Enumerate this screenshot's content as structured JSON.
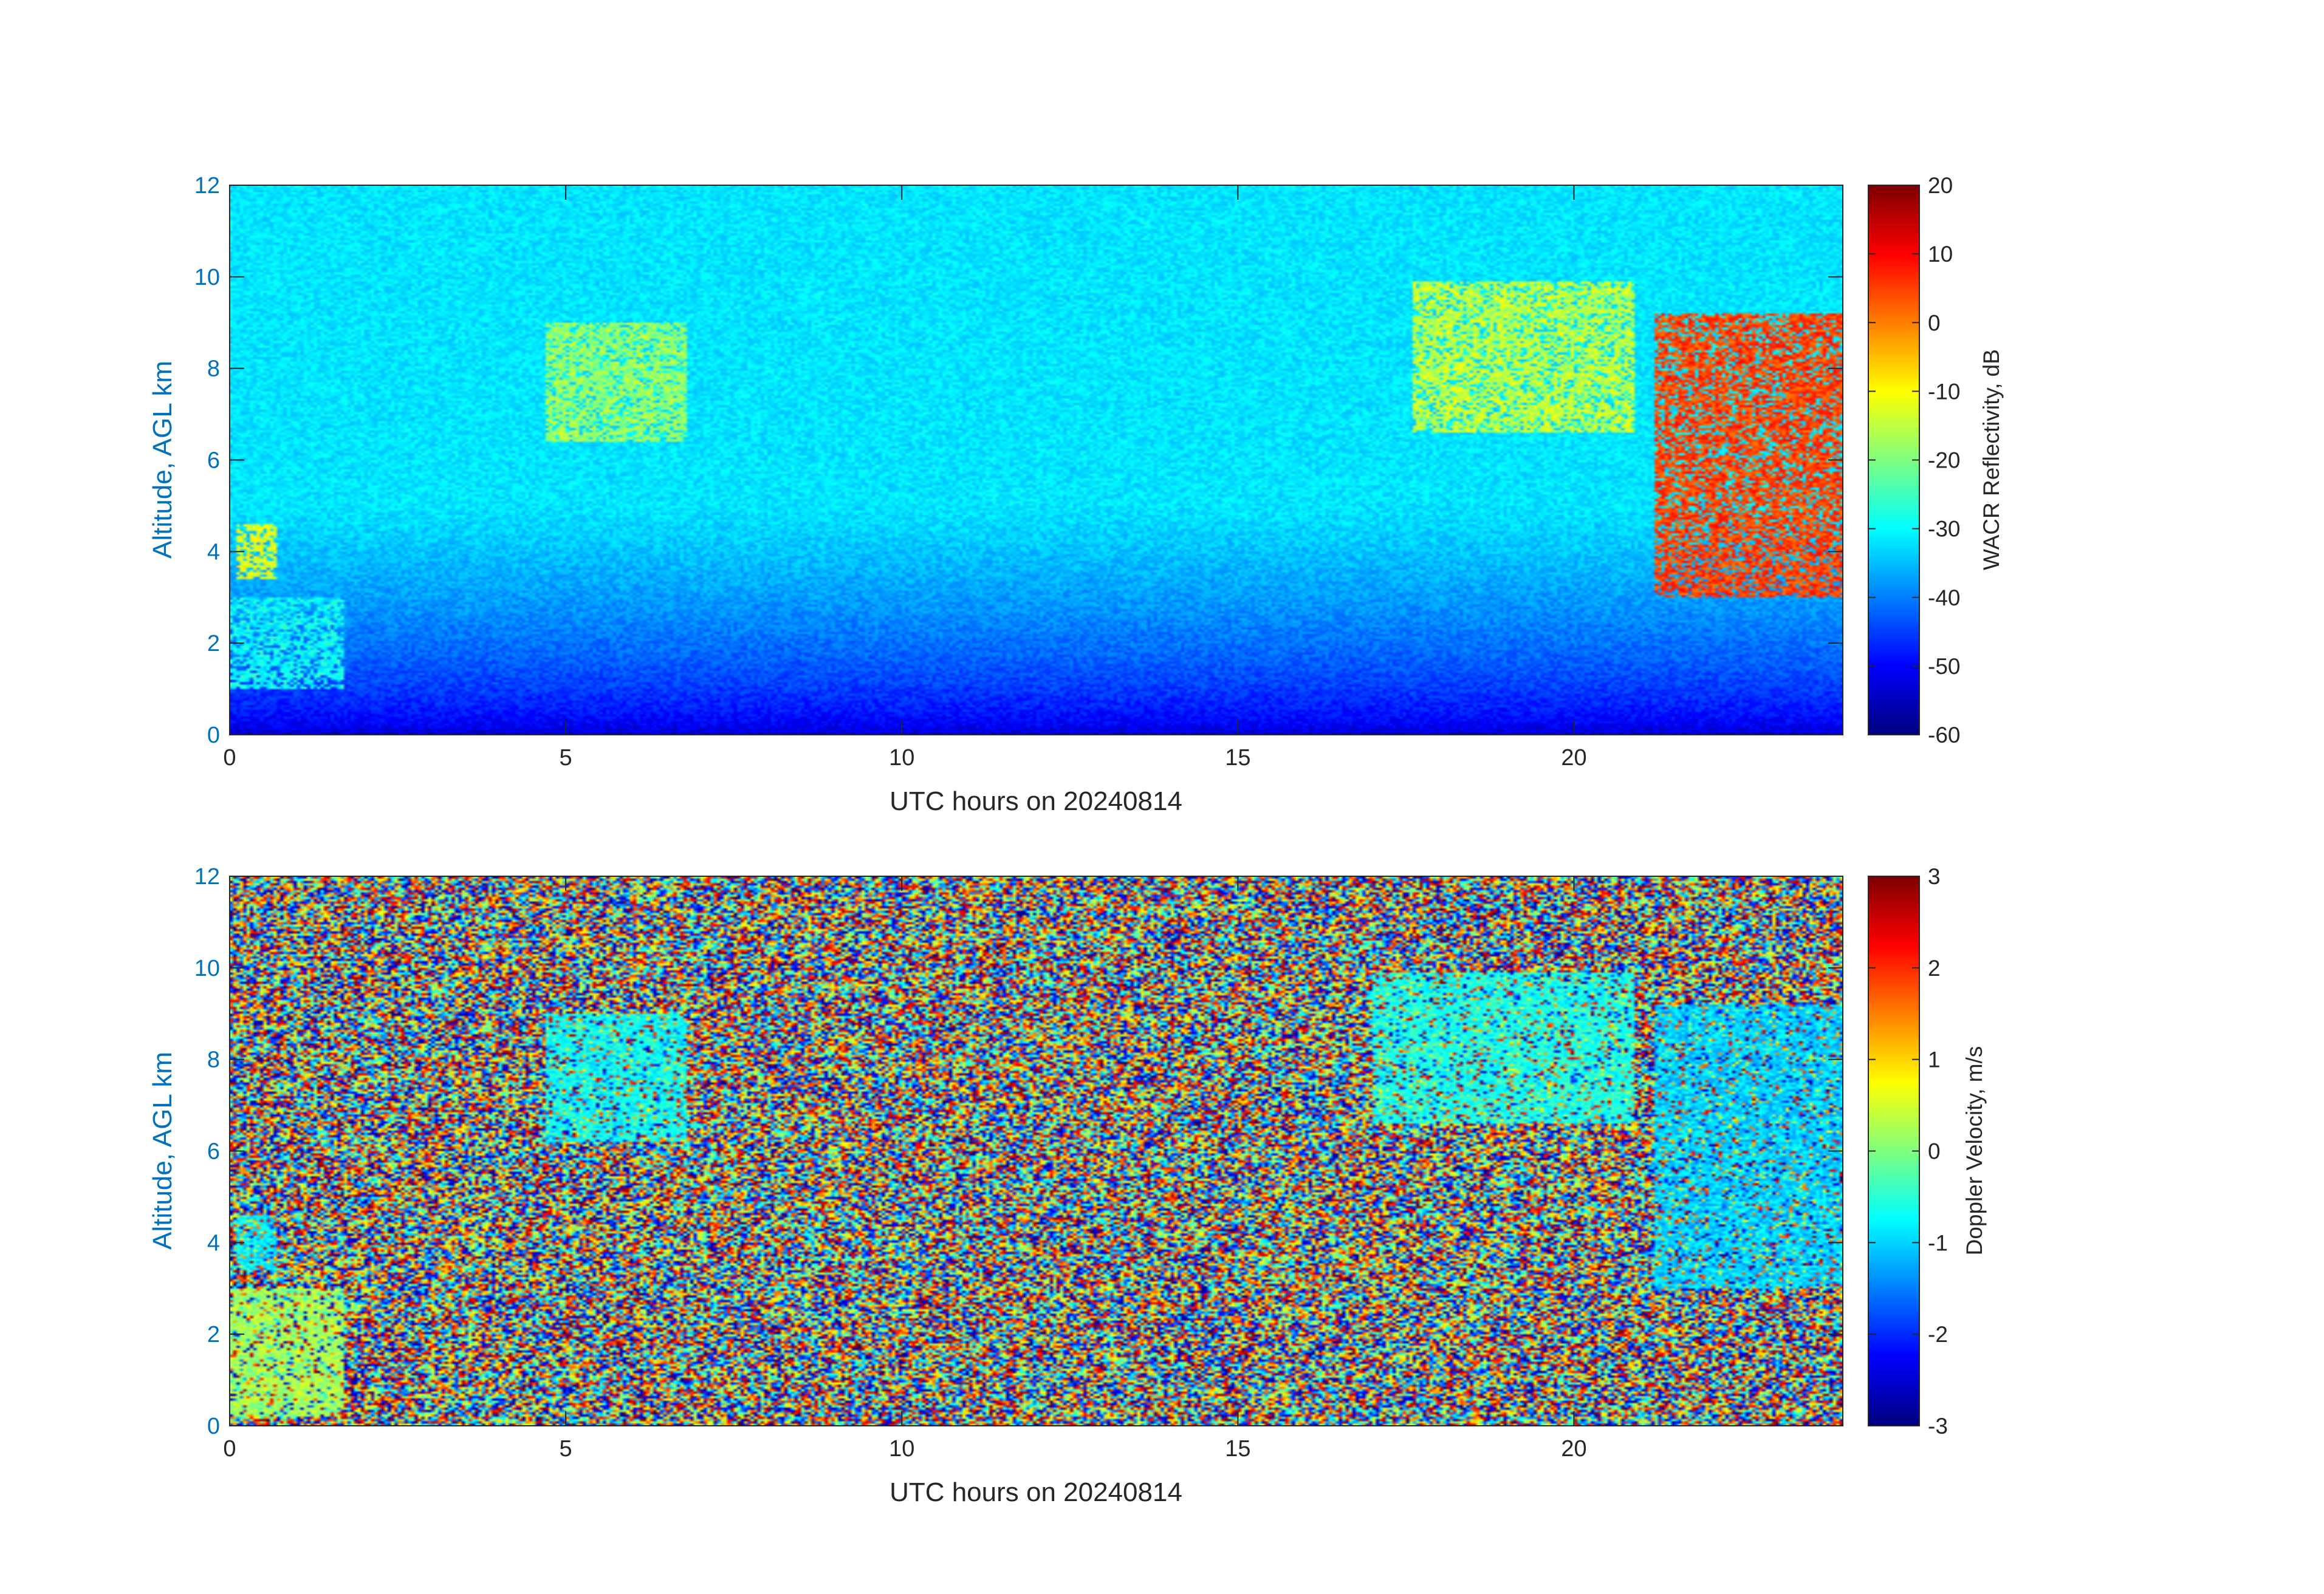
{
  "chart_data": [
    {
      "type": "heatmap",
      "xlabel": "UTC hours on 20240814",
      "ylabel": "Altitude, AGL km",
      "xlim": [
        0,
        24
      ],
      "ylim": [
        0,
        12
      ],
      "xticks": [
        0,
        5,
        10,
        15,
        20
      ],
      "yticks": [
        0,
        2,
        4,
        6,
        8,
        10,
        12
      ],
      "colorbar": {
        "label": "WACR Reflectivity, dB",
        "colormap": "jet",
        "range": [
          -60,
          20
        ],
        "ticks": [
          20,
          10,
          0,
          -10,
          -20,
          -30,
          -40,
          -50,
          -60
        ]
      },
      "background": {
        "surface_value": -55,
        "top_value": -32
      },
      "features": [
        {
          "x": [
            4.7,
            6.8
          ],
          "y": [
            6.4,
            9.0
          ],
          "value": -18
        },
        {
          "x": [
            0.1,
            0.7
          ],
          "y": [
            3.4,
            4.6
          ],
          "value": -12
        },
        {
          "x": [
            0.0,
            1.7
          ],
          "y": [
            1.0,
            3.0
          ],
          "value": -30
        },
        {
          "x": [
            17.6,
            20.9
          ],
          "y": [
            6.6,
            9.9
          ],
          "value": -15
        },
        {
          "x": [
            21.2,
            24.0
          ],
          "y": [
            3.0,
            9.2
          ],
          "value": 5
        }
      ]
    },
    {
      "type": "heatmap",
      "xlabel": "UTC hours on 20240814",
      "ylabel": "Altitude, AGL km",
      "xlim": [
        0,
        24
      ],
      "ylim": [
        0,
        12
      ],
      "xticks": [
        0,
        5,
        10,
        15,
        20
      ],
      "yticks": [
        0,
        2,
        4,
        6,
        8,
        10,
        12
      ],
      "colorbar": {
        "label": "Doppler Velocity, m/s",
        "colormap": "jet",
        "range": [
          -3,
          3
        ],
        "ticks": [
          3,
          2,
          1,
          0,
          -1,
          -2,
          -3
        ]
      },
      "background": {
        "pattern": "noise"
      },
      "features": [
        {
          "x": [
            4.7,
            6.8
          ],
          "y": [
            6.2,
            9.0
          ],
          "value": -0.7
        },
        {
          "x": [
            0.1,
            0.7
          ],
          "y": [
            3.4,
            4.6
          ],
          "value": -0.8
        },
        {
          "x": [
            0.0,
            1.7
          ],
          "y": [
            0.2,
            3.0
          ],
          "value": 0.2
        },
        {
          "x": [
            17.0,
            20.9
          ],
          "y": [
            6.6,
            9.9
          ],
          "value": -0.6
        },
        {
          "x": [
            21.2,
            24.0
          ],
          "y": [
            3.0,
            9.2
          ],
          "value": -1.0
        }
      ]
    }
  ]
}
